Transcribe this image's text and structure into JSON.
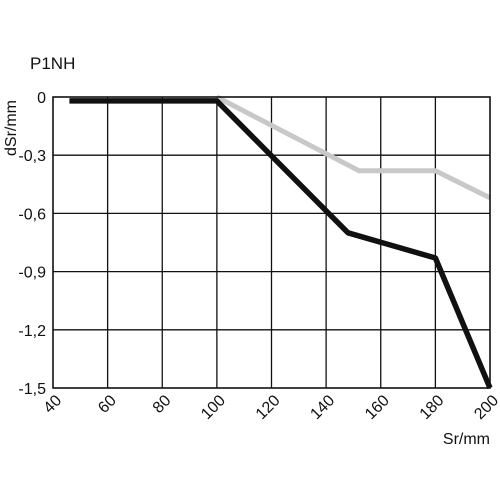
{
  "chart_data": {
    "type": "line",
    "title": "P1NH",
    "xlabel": "Sr/mm",
    "ylabel": "dSr/mm",
    "xlim": [
      40,
      200
    ],
    "ylim": [
      -1.5,
      0
    ],
    "x_ticks": [
      40,
      60,
      80,
      100,
      120,
      140,
      160,
      180,
      200
    ],
    "x_tick_labels": [
      "40",
      "60",
      "80",
      "100",
      "120",
      "140",
      "160",
      "180",
      "200"
    ],
    "y_ticks": [
      0,
      -0.3,
      -0.6,
      -0.9,
      -1.2,
      -1.5
    ],
    "y_tick_labels": [
      "0",
      "-0,3",
      "-0,6",
      "-0,9",
      "-1,2",
      "-1,5"
    ],
    "grid": true,
    "legend": "none",
    "series": [
      {
        "color": "#c8c8c8",
        "x": [
          100,
          152,
          180,
          200
        ],
        "y": [
          0,
          -0.38,
          -0.38,
          -0.52
        ]
      },
      {
        "color": "#111111",
        "x": [
          46,
          100,
          148,
          180,
          200
        ],
        "y": [
          -0.02,
          -0.02,
          -0.7,
          -0.83,
          -1.5
        ]
      }
    ]
  }
}
